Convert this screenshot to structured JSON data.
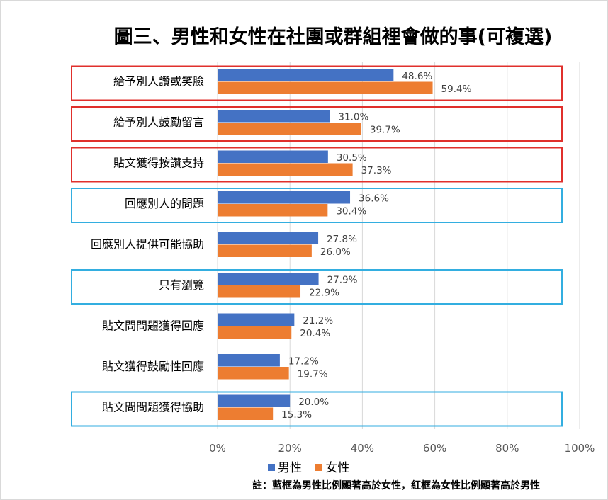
{
  "chart_data": {
    "type": "bar",
    "orientation": "horizontal",
    "title": "圖三、男性和女性在社團或群組裡會做的事(可複選)",
    "categories": [
      "給予別人讚或笑臉",
      "給予別人鼓勵留言",
      "貼文獲得按讚支持",
      "回應別人的問題",
      "回應別人提供可能協助",
      "只有瀏覽",
      "貼文問問題獲得回應",
      "貼文獲得鼓勵性回應",
      "貼文問問題獲得協助"
    ],
    "series": [
      {
        "name": "男性",
        "color": "#4472c4",
        "values": [
          48.6,
          31.0,
          30.5,
          36.6,
          27.8,
          27.9,
          21.2,
          17.2,
          20.0
        ],
        "labels": [
          "48.6%",
          "31.0%",
          "30.5%",
          "36.6%",
          "27.8%",
          "27.9%",
          "21.2%",
          "17.2%",
          "20.0%"
        ]
      },
      {
        "name": "女性",
        "color": "#ed7d31",
        "values": [
          59.4,
          39.7,
          37.3,
          30.4,
          26.0,
          22.9,
          20.4,
          19.7,
          15.3
        ],
        "labels": [
          "59.4%",
          "39.7%",
          "37.3%",
          "30.4%",
          "26.0%",
          "22.9%",
          "20.4%",
          "19.7%",
          "15.3%"
        ]
      }
    ],
    "xlim": [
      0,
      100
    ],
    "xticks": [
      "0%",
      "20%",
      "40%",
      "60%",
      "80%",
      "100%"
    ],
    "xtick_values": [
      0,
      20,
      40,
      60,
      80,
      100
    ],
    "grid": true,
    "legend_position": "bottom",
    "highlight_boxes": [
      {
        "category_index": 0,
        "color": "#e0302c"
      },
      {
        "category_index": 1,
        "color": "#e0302c"
      },
      {
        "category_index": 2,
        "color": "#e0302c"
      },
      {
        "category_index": 3,
        "color": "#33aee0"
      },
      {
        "category_index": 5,
        "color": "#33aee0"
      },
      {
        "category_index": 8,
        "color": "#33aee0"
      }
    ],
    "note": "註：藍框為男性比例顯著高於女性，紅框為女性比例顯著高於男性"
  }
}
